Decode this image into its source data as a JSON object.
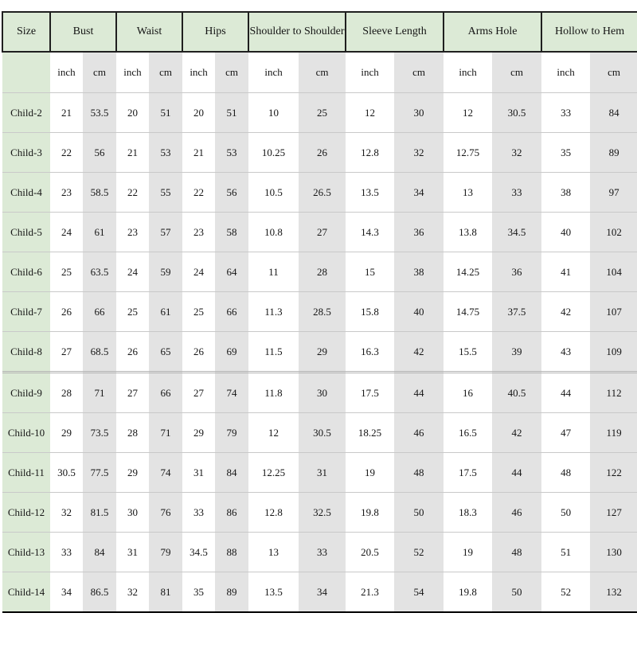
{
  "table": {
    "title": "children-size-chart",
    "header_groups": [
      {
        "label": "Size",
        "span": 1
      },
      {
        "label": "Bust",
        "span": 2
      },
      {
        "label": "Waist",
        "span": 2
      },
      {
        "label": "Hips",
        "span": 2
      },
      {
        "label": "Shoulder to Shoulder",
        "span": 2
      },
      {
        "label": "Sleeve Length",
        "span": 2
      },
      {
        "label": "Arms Hole",
        "span": 2
      },
      {
        "label": "Hollow to Hem",
        "span": 2
      }
    ],
    "unit_labels": [
      "inch",
      "cm"
    ],
    "rows": [
      {
        "size": "Child-2",
        "values": [
          "21",
          "53.5",
          "20",
          "51",
          "20",
          "51",
          "10",
          "25",
          "12",
          "30",
          "12",
          "30.5",
          "33",
          "84"
        ]
      },
      {
        "size": "Child-3",
        "values": [
          "22",
          "56",
          "21",
          "53",
          "21",
          "53",
          "10.25",
          "26",
          "12.8",
          "32",
          "12.75",
          "32",
          "35",
          "89"
        ]
      },
      {
        "size": "Child-4",
        "values": [
          "23",
          "58.5",
          "22",
          "55",
          "22",
          "56",
          "10.5",
          "26.5",
          "13.5",
          "34",
          "13",
          "33",
          "38",
          "97"
        ]
      },
      {
        "size": "Child-5",
        "values": [
          "24",
          "61",
          "23",
          "57",
          "23",
          "58",
          "10.8",
          "27",
          "14.3",
          "36",
          "13.8",
          "34.5",
          "40",
          "102"
        ]
      },
      {
        "size": "Child-6",
        "values": [
          "25",
          "63.5",
          "24",
          "59",
          "24",
          "64",
          "11",
          "28",
          "15",
          "38",
          "14.25",
          "36",
          "41",
          "104"
        ]
      },
      {
        "size": "Child-7",
        "values": [
          "26",
          "66",
          "25",
          "61",
          "25",
          "66",
          "11.3",
          "28.5",
          "15.8",
          "40",
          "14.75",
          "37.5",
          "42",
          "107"
        ]
      },
      {
        "size": "Child-8",
        "values": [
          "27",
          "68.5",
          "26",
          "65",
          "26",
          "69",
          "11.5",
          "29",
          "16.3",
          "42",
          "15.5",
          "39",
          "43",
          "109"
        ]
      },
      {
        "size": "Child-9",
        "values": [
          "28",
          "71",
          "27",
          "66",
          "27",
          "74",
          "11.8",
          "30",
          "17.5",
          "44",
          "16",
          "40.5",
          "44",
          "112"
        ],
        "separator_above": true
      },
      {
        "size": "Child-10",
        "values": [
          "29",
          "73.5",
          "28",
          "71",
          "29",
          "79",
          "12",
          "30.5",
          "18.25",
          "46",
          "16.5",
          "42",
          "47",
          "119"
        ]
      },
      {
        "size": "Child-11",
        "values": [
          "30.5",
          "77.5",
          "29",
          "74",
          "31",
          "84",
          "12.25",
          "31",
          "19",
          "48",
          "17.5",
          "44",
          "48",
          "122"
        ]
      },
      {
        "size": "Child-12",
        "values": [
          "32",
          "81.5",
          "30",
          "76",
          "33",
          "86",
          "12.8",
          "32.5",
          "19.8",
          "50",
          "18.3",
          "46",
          "50",
          "127"
        ]
      },
      {
        "size": "Child-13",
        "values": [
          "33",
          "84",
          "31",
          "79",
          "34.5",
          "88",
          "13",
          "33",
          "20.5",
          "52",
          "19",
          "48",
          "51",
          "130"
        ]
      },
      {
        "size": "Child-14",
        "values": [
          "34",
          "86.5",
          "32",
          "81",
          "35",
          "89",
          "13.5",
          "34",
          "21.3",
          "54",
          "19.8",
          "50",
          "52",
          "132"
        ]
      }
    ]
  },
  "colors": {
    "header_green": "#dcead6",
    "cm_column_gray": "#e3e3e3",
    "header_border": "#1f1f1f",
    "row_separator": "#c9c9c9",
    "bottom_rule": "#000000"
  }
}
